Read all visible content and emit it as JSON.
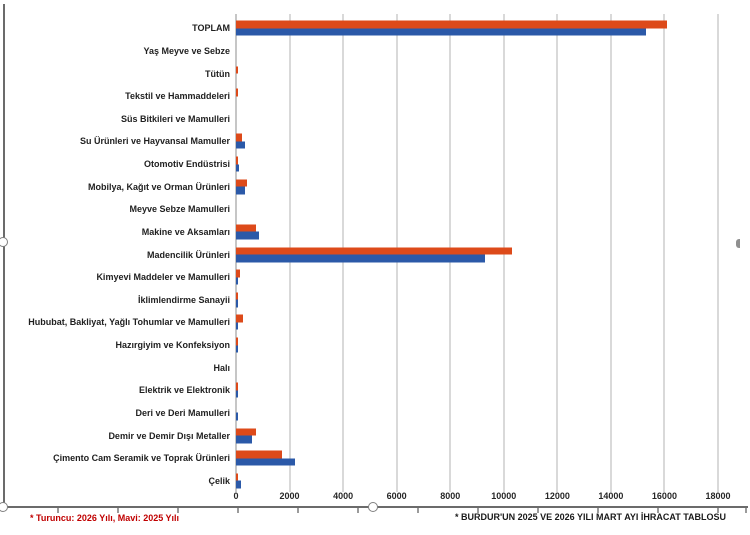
{
  "chart_data": {
    "type": "bar",
    "orientation": "horizontal",
    "title": "",
    "xlabel": "",
    "ylabel": "",
    "xlim": [
      0,
      18000
    ],
    "x_ticks": [
      0,
      2000,
      4000,
      6000,
      8000,
      10000,
      12000,
      14000,
      16000,
      18000
    ],
    "grid": true,
    "legend_position": "none",
    "categories": [
      "TOPLAM",
      "Yaş Meyve ve Sebze",
      "Tütün",
      "Tekstil ve Hammaddeleri",
      "Süs Bitkileri ve Mamulleri",
      "Su Ürünleri ve Hayvansal Mamuller",
      "Otomotiv Endüstrisi",
      "Mobilya, Kağıt ve Orman Ürünleri",
      "Meyve Sebze Mamulleri",
      "Makine ve Aksamları",
      "Madencilik Ürünleri",
      "Kimyevi Maddeler ve Mamulleri",
      "İklimlendirme Sanayii",
      "Hububat, Bakliyat, Yağlı Tohumlar ve Mamulleri",
      "Hazırgiyim ve Konfeksiyon",
      "Halı",
      "Elektrik ve Elektronik",
      "Deri ve Deri Mamulleri",
      "Demir ve Demir Dışı Metaller",
      "Çimento Cam Seramik ve Toprak Ürünleri",
      "Çelik"
    ],
    "series": [
      {
        "name": "2026 Yılı",
        "color": "#dd4a1a",
        "values": [
          16100,
          0,
          80,
          80,
          0,
          220,
          80,
          410,
          0,
          750,
          10300,
          150,
          60,
          260,
          60,
          0,
          60,
          0,
          750,
          1700,
          60
        ]
      },
      {
        "name": "2025 Yılı",
        "color": "#2b59a8",
        "values": [
          15300,
          0,
          0,
          0,
          0,
          330,
          130,
          350,
          0,
          850,
          9300,
          75,
          60,
          60,
          60,
          0,
          60,
          75,
          600,
          2200,
          185
        ]
      }
    ]
  },
  "footnotes": {
    "left": "* Turuncu: 2026 Yılı, Mavi: 2025 Yılı",
    "left_color": "#c00000",
    "right": "* BURDUR'UN 2025 VE 2026 YILI MART AYI İHRACAT TABLOSU"
  }
}
